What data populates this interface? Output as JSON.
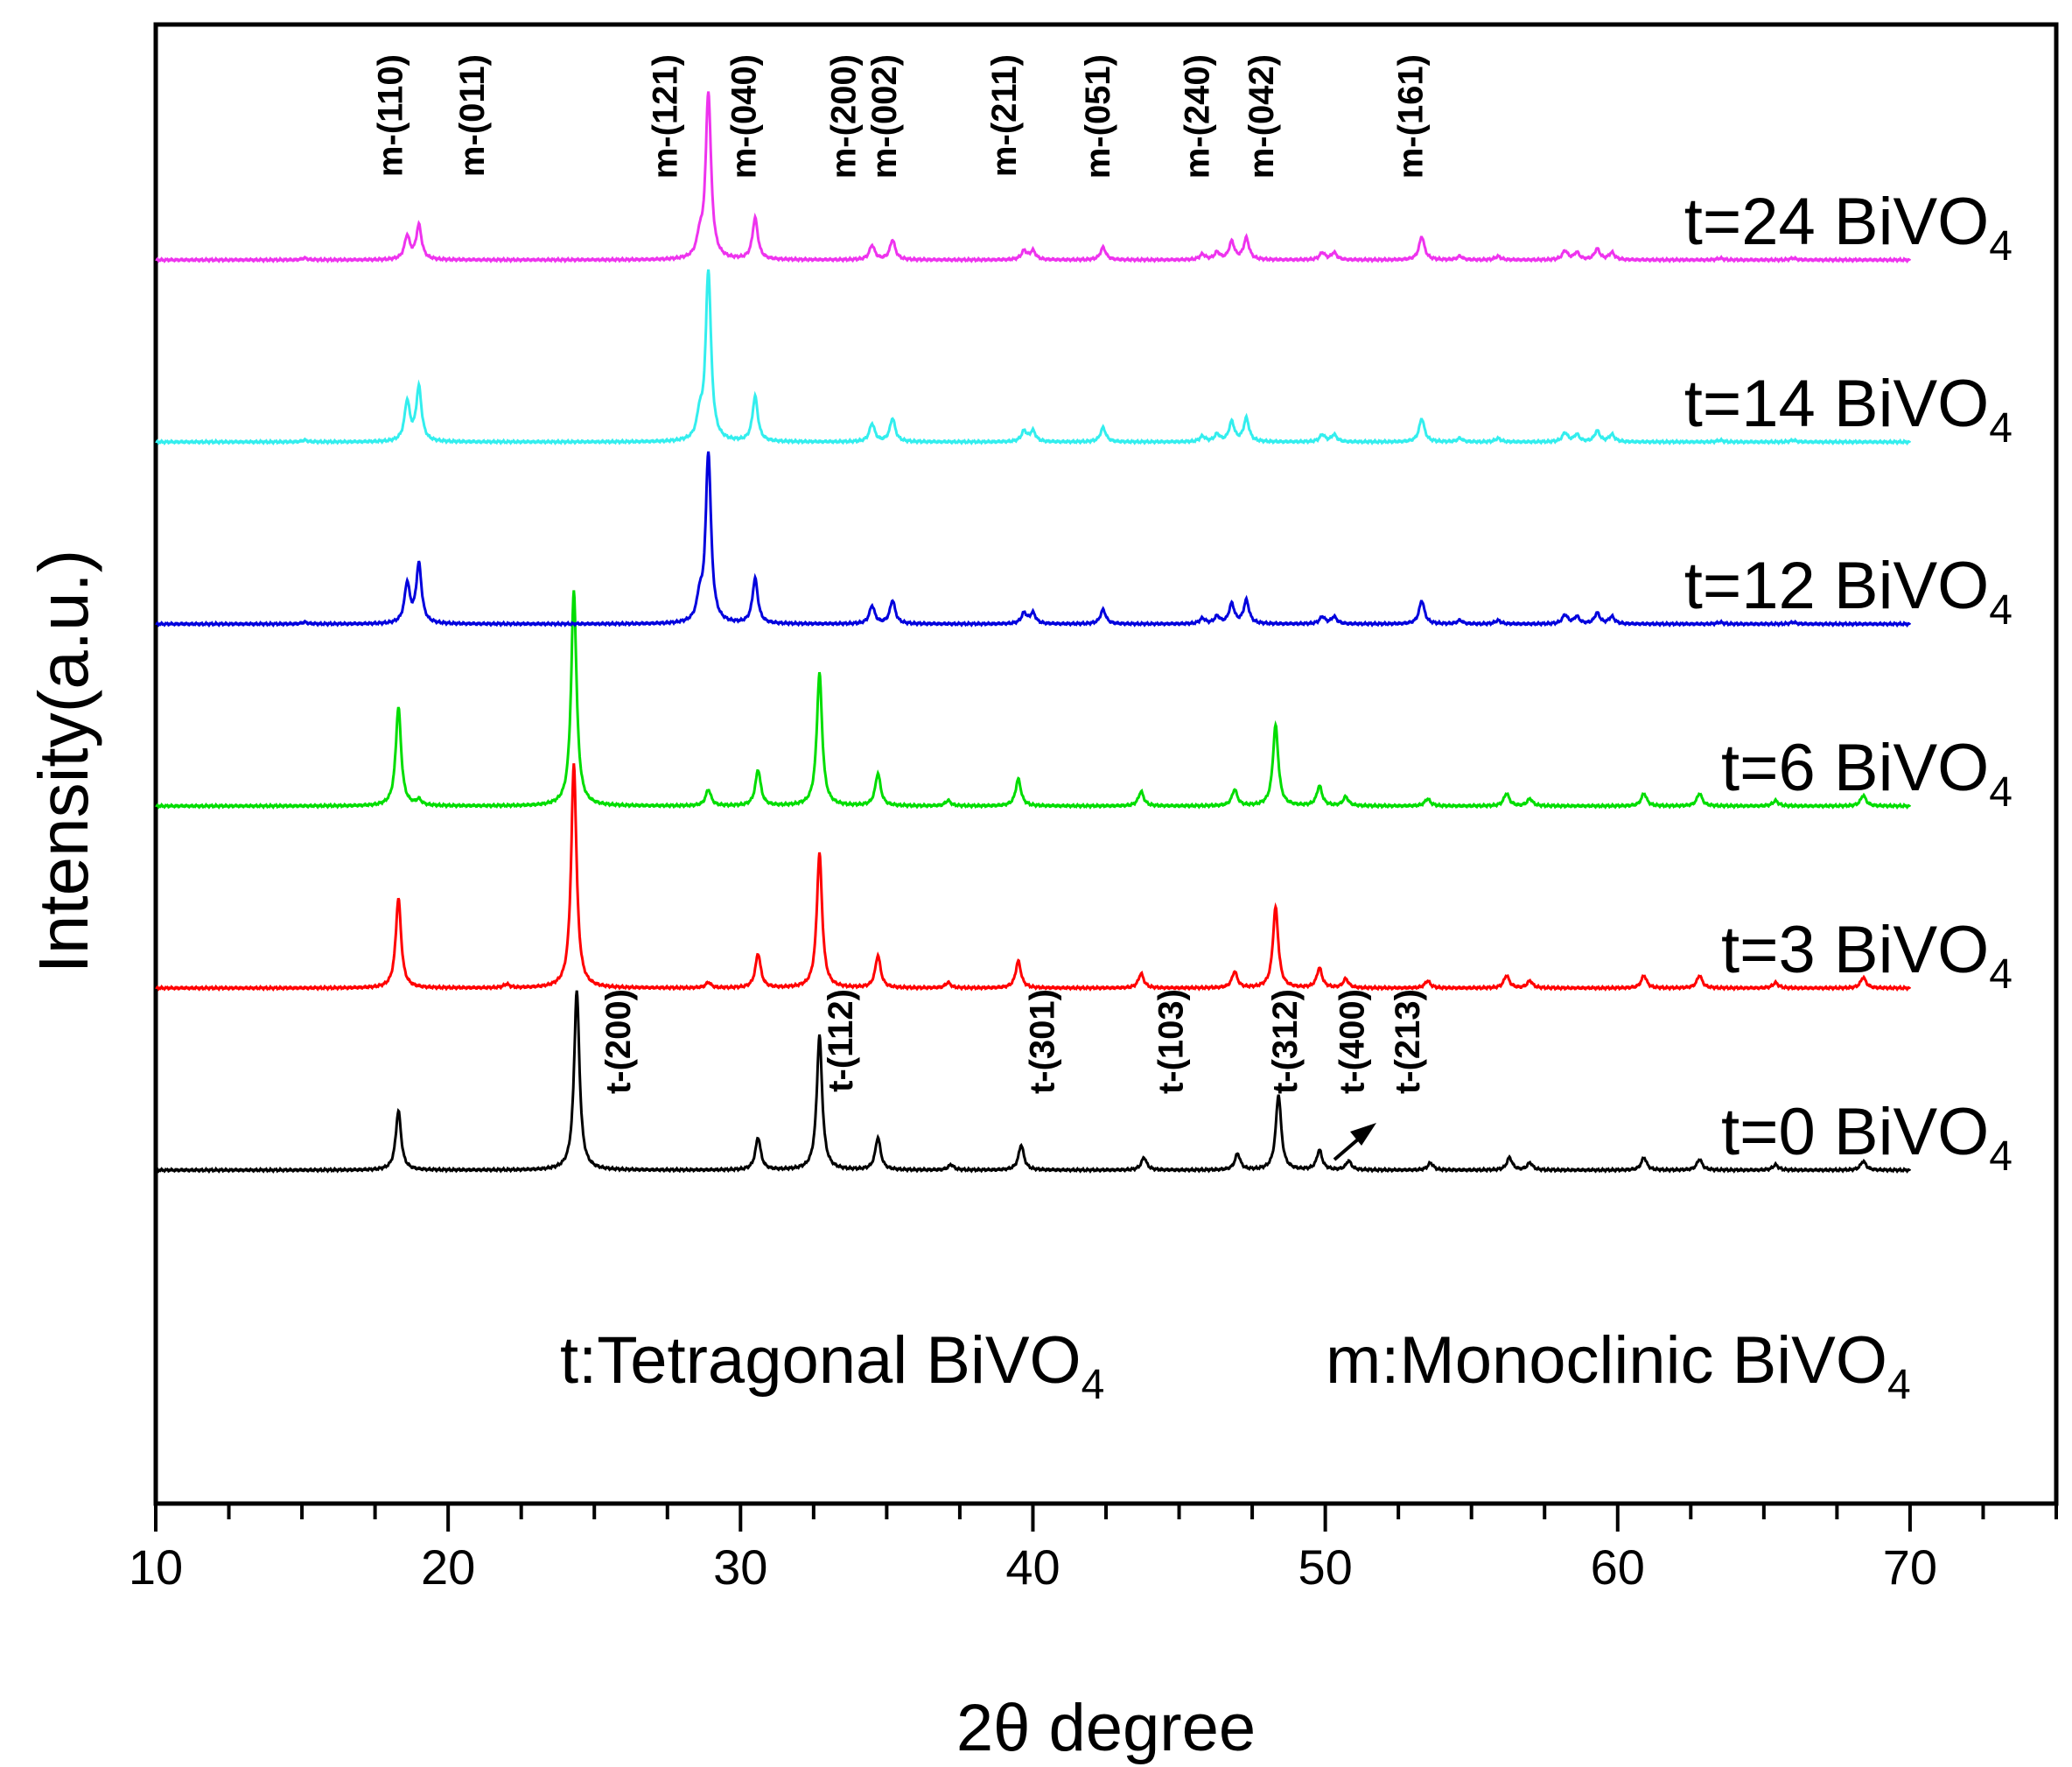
{
  "chart_data": {
    "type": "line",
    "title": "",
    "xlabel": "2θ degree",
    "ylabel": "Intensity(a.u.)",
    "xlim": [
      10,
      75
    ],
    "x_ticks": [
      10,
      20,
      30,
      40,
      50,
      60,
      70
    ],
    "x_tick_labels": [
      "10",
      "20",
      "30",
      "40",
      "50",
      "60",
      "70"
    ],
    "y_ticks": false,
    "series": [
      {
        "name": "t=0",
        "label_prefix": "t=0 BiVO",
        "label_sub": "4",
        "color": "#000000",
        "offset": 0,
        "peaks": [
          [
            18.3,
            0.33
          ],
          [
            24.4,
            1.0
          ],
          [
            30.6,
            0.18
          ],
          [
            32.7,
            0.75
          ],
          [
            34.7,
            0.18
          ],
          [
            37.2,
            0.03
          ],
          [
            39.6,
            0.14
          ],
          [
            43.8,
            0.07
          ],
          [
            47.0,
            0.09
          ],
          [
            48.4,
            0.42
          ],
          [
            49.8,
            0.11
          ],
          [
            50.8,
            0.05
          ],
          [
            53.6,
            0.04
          ],
          [
            56.3,
            0.07
          ],
          [
            57.0,
            0.04
          ],
          [
            60.9,
            0.07
          ],
          [
            62.8,
            0.06
          ],
          [
            65.4,
            0.03
          ],
          [
            68.4,
            0.05
          ]
        ]
      },
      {
        "name": "t=3",
        "label_prefix": "t=3 BiVO",
        "label_sub": "4",
        "color": "#ff0000",
        "offset": 1,
        "peaks": [
          [
            18.3,
            0.5
          ],
          [
            22.0,
            0.02
          ],
          [
            24.3,
            1.25
          ],
          [
            28.9,
            0.03
          ],
          [
            30.6,
            0.19
          ],
          [
            32.7,
            0.75
          ],
          [
            34.7,
            0.18
          ],
          [
            37.1,
            0.03
          ],
          [
            39.5,
            0.15
          ],
          [
            43.7,
            0.08
          ],
          [
            46.9,
            0.09
          ],
          [
            48.3,
            0.45
          ],
          [
            49.8,
            0.11
          ],
          [
            50.7,
            0.05
          ],
          [
            53.5,
            0.04
          ],
          [
            56.2,
            0.07
          ],
          [
            57.0,
            0.04
          ],
          [
            60.9,
            0.07
          ],
          [
            62.8,
            0.07
          ],
          [
            65.4,
            0.03
          ],
          [
            68.4,
            0.06
          ]
        ]
      },
      {
        "name": "t=6",
        "label_prefix": "t=6 BiVO",
        "label_sub": "4",
        "color": "#00dd00",
        "offset": 2,
        "peaks": [
          [
            18.3,
            0.55
          ],
          [
            19.0,
            0.03
          ],
          [
            24.3,
            1.2
          ],
          [
            28.9,
            0.09
          ],
          [
            30.6,
            0.2
          ],
          [
            32.7,
            0.74
          ],
          [
            34.7,
            0.18
          ],
          [
            37.1,
            0.03
          ],
          [
            39.5,
            0.15
          ],
          [
            43.7,
            0.08
          ],
          [
            46.9,
            0.09
          ],
          [
            48.3,
            0.45
          ],
          [
            49.8,
            0.11
          ],
          [
            50.7,
            0.05
          ],
          [
            53.5,
            0.04
          ],
          [
            56.2,
            0.07
          ],
          [
            57.0,
            0.04
          ],
          [
            60.9,
            0.07
          ],
          [
            62.8,
            0.07
          ],
          [
            65.4,
            0.03
          ],
          [
            68.4,
            0.06
          ]
        ]
      },
      {
        "name": "t=12",
        "label_prefix": "t=12 BiVO",
        "label_sub": "4",
        "color": "#0000dd",
        "offset": 3,
        "peaks": [
          [
            15.1,
            0.01
          ],
          [
            18.6,
            0.22
          ],
          [
            19.0,
            0.33
          ],
          [
            28.6,
            0.12
          ],
          [
            28.9,
            0.95
          ],
          [
            30.5,
            0.25
          ],
          [
            34.5,
            0.1
          ],
          [
            35.2,
            0.13
          ],
          [
            39.7,
            0.06
          ],
          [
            40.0,
            0.06
          ],
          [
            42.4,
            0.08
          ],
          [
            45.8,
            0.03
          ],
          [
            46.3,
            0.04
          ],
          [
            46.8,
            0.11
          ],
          [
            47.3,
            0.13
          ],
          [
            49.9,
            0.04
          ],
          [
            50.3,
            0.04
          ],
          [
            53.3,
            0.13
          ],
          [
            54.6,
            0.02
          ],
          [
            55.9,
            0.02
          ],
          [
            58.2,
            0.05
          ],
          [
            58.6,
            0.04
          ],
          [
            59.3,
            0.06
          ],
          [
            59.8,
            0.04
          ],
          [
            63.5,
            0.01
          ],
          [
            66.0,
            0.01
          ]
        ]
      },
      {
        "name": "t=14",
        "label_prefix": "t=14 BiVO",
        "label_sub": "4",
        "color": "#33eeee",
        "offset": 4,
        "peaks": [
          [
            15.1,
            0.01
          ],
          [
            18.6,
            0.22
          ],
          [
            19.0,
            0.3
          ],
          [
            28.6,
            0.12
          ],
          [
            28.9,
            0.95
          ],
          [
            30.5,
            0.25
          ],
          [
            34.5,
            0.1
          ],
          [
            35.2,
            0.13
          ],
          [
            39.7,
            0.06
          ],
          [
            40.0,
            0.06
          ],
          [
            42.4,
            0.08
          ],
          [
            45.8,
            0.03
          ],
          [
            46.3,
            0.04
          ],
          [
            46.8,
            0.11
          ],
          [
            47.3,
            0.13
          ],
          [
            49.9,
            0.04
          ],
          [
            50.3,
            0.04
          ],
          [
            53.3,
            0.13
          ],
          [
            54.6,
            0.02
          ],
          [
            55.9,
            0.02
          ],
          [
            58.2,
            0.05
          ],
          [
            58.6,
            0.04
          ],
          [
            59.3,
            0.06
          ],
          [
            59.8,
            0.04
          ],
          [
            63.5,
            0.01
          ],
          [
            66.0,
            0.01
          ]
        ]
      },
      {
        "name": "t=24",
        "label_prefix": "t=24 BiVO",
        "label_sub": "4",
        "color": "#ee33ee",
        "offset": 5,
        "peaks": [
          [
            15.1,
            0.01
          ],
          [
            18.6,
            0.13
          ],
          [
            19.0,
            0.19
          ],
          [
            28.6,
            0.1
          ],
          [
            28.9,
            0.93
          ],
          [
            30.5,
            0.23
          ],
          [
            34.5,
            0.08
          ],
          [
            35.2,
            0.11
          ],
          [
            39.7,
            0.05
          ],
          [
            40.0,
            0.05
          ],
          [
            42.4,
            0.07
          ],
          [
            45.8,
            0.03
          ],
          [
            46.3,
            0.04
          ],
          [
            46.8,
            0.1
          ],
          [
            47.3,
            0.12
          ],
          [
            49.9,
            0.04
          ],
          [
            50.3,
            0.04
          ],
          [
            53.3,
            0.13
          ],
          [
            54.6,
            0.02
          ],
          [
            55.9,
            0.02
          ],
          [
            58.2,
            0.05
          ],
          [
            58.6,
            0.04
          ],
          [
            59.3,
            0.06
          ],
          [
            59.8,
            0.04
          ],
          [
            63.5,
            0.01
          ],
          [
            66.0,
            0.01
          ]
        ]
      }
    ],
    "annotations_monoclinic": [
      {
        "label": "m-(110)",
        "x": 18.0
      },
      {
        "label": "m-(011)",
        "x": 20.8
      },
      {
        "label": "m-(121)",
        "x": 27.4
      },
      {
        "label": "m-(040)",
        "x": 30.1
      },
      {
        "label": "m-(200)",
        "x": 33.5
      },
      {
        "label": "m-(002)",
        "x": 34.9
      },
      {
        "label": "m-(211)",
        "x": 39.0
      },
      {
        "label": "m-(051)",
        "x": 42.2
      },
      {
        "label": "m-(240)",
        "x": 45.6
      },
      {
        "label": "m-(042)",
        "x": 47.8
      },
      {
        "label": "m-(161)",
        "x": 52.9
      }
    ],
    "annotations_tetragonal": [
      {
        "label": "t-(200)",
        "x": 25.8
      },
      {
        "label": "t-(112)",
        "x": 33.4
      },
      {
        "label": "t-(301)",
        "x": 40.3
      },
      {
        "label": "t-(103)",
        "x": 44.7
      },
      {
        "label": "t-(312)",
        "x": 48.6
      },
      {
        "label": "t-(400)",
        "x": 50.9
      },
      {
        "label": "t-(213)",
        "x": 52.8
      }
    ],
    "legend": {
      "tetragonal_prefix": "t:Tetragonal BiVO",
      "tetragonal_sub": "4",
      "monoclinic_prefix": "m:Monoclinic BiVO",
      "monoclinic_sub": "4"
    }
  }
}
